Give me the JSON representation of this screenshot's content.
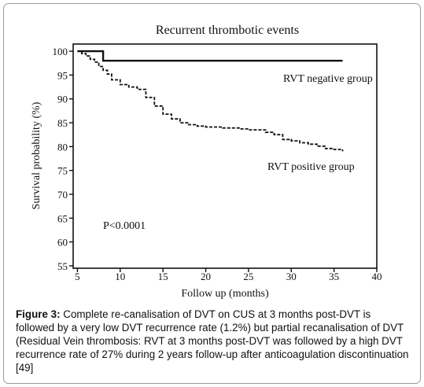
{
  "chart_data": {
    "type": "line",
    "title": "Recurrent thrombotic events",
    "xlabel": "Follow up (months)",
    "ylabel": "Survival probability (%)",
    "xlim": [
      4.5,
      40
    ],
    "ylim": [
      54.5,
      101.5
    ],
    "x_ticks": [
      5,
      10,
      15,
      20,
      25,
      30,
      35,
      40
    ],
    "y_ticks": [
      55,
      60,
      65,
      70,
      75,
      80,
      85,
      90,
      95,
      100
    ],
    "grid": false,
    "series": [
      {
        "name": "RVT negative group",
        "line_style": "solid",
        "color": "#111111",
        "points": [
          [
            5,
            100
          ],
          [
            8,
            100
          ],
          [
            8,
            98
          ],
          [
            36,
            98
          ]
        ]
      },
      {
        "name": "RVT positive group",
        "line_style": "dashed",
        "color": "#111111",
        "points": [
          [
            5,
            100
          ],
          [
            5.5,
            99.5
          ],
          [
            6,
            99
          ],
          [
            6.5,
            98.3
          ],
          [
            7,
            97.7
          ],
          [
            7.5,
            96.8
          ],
          [
            8,
            96
          ],
          [
            8.5,
            95.2
          ],
          [
            9,
            94
          ],
          [
            10,
            93
          ],
          [
            11,
            92.5
          ],
          [
            12,
            92
          ],
          [
            13,
            90.3
          ],
          [
            14,
            88.5
          ],
          [
            15,
            86.8
          ],
          [
            16,
            85.8
          ],
          [
            17,
            85
          ],
          [
            18,
            84.6
          ],
          [
            19,
            84.3
          ],
          [
            20,
            84.1
          ],
          [
            22,
            83.9
          ],
          [
            24,
            83.7
          ],
          [
            25,
            83.5
          ],
          [
            27,
            83
          ],
          [
            28,
            82.5
          ],
          [
            29,
            81.5
          ],
          [
            30,
            81.2
          ],
          [
            31,
            80.8
          ],
          [
            32,
            80.5
          ],
          [
            33,
            80.1
          ],
          [
            34,
            79.6
          ],
          [
            35,
            79.4
          ],
          [
            36,
            79
          ]
        ]
      }
    ],
    "annotations": [
      "P<0.0001"
    ]
  },
  "caption": {
    "label": "Figure 3:",
    "text": "Complete re-canalisation of DVT on CUS at 3 months post-DVT is followed by a very low DVT recurrence rate (1.2%) but partial recanalisation of DVT (Residual Vein thrombosis: RVT at 3 months post-DVT was followed by a high DVT recurrence rate of 27% during 2 years follow-up after anticoagulation discontinuation [49]"
  }
}
